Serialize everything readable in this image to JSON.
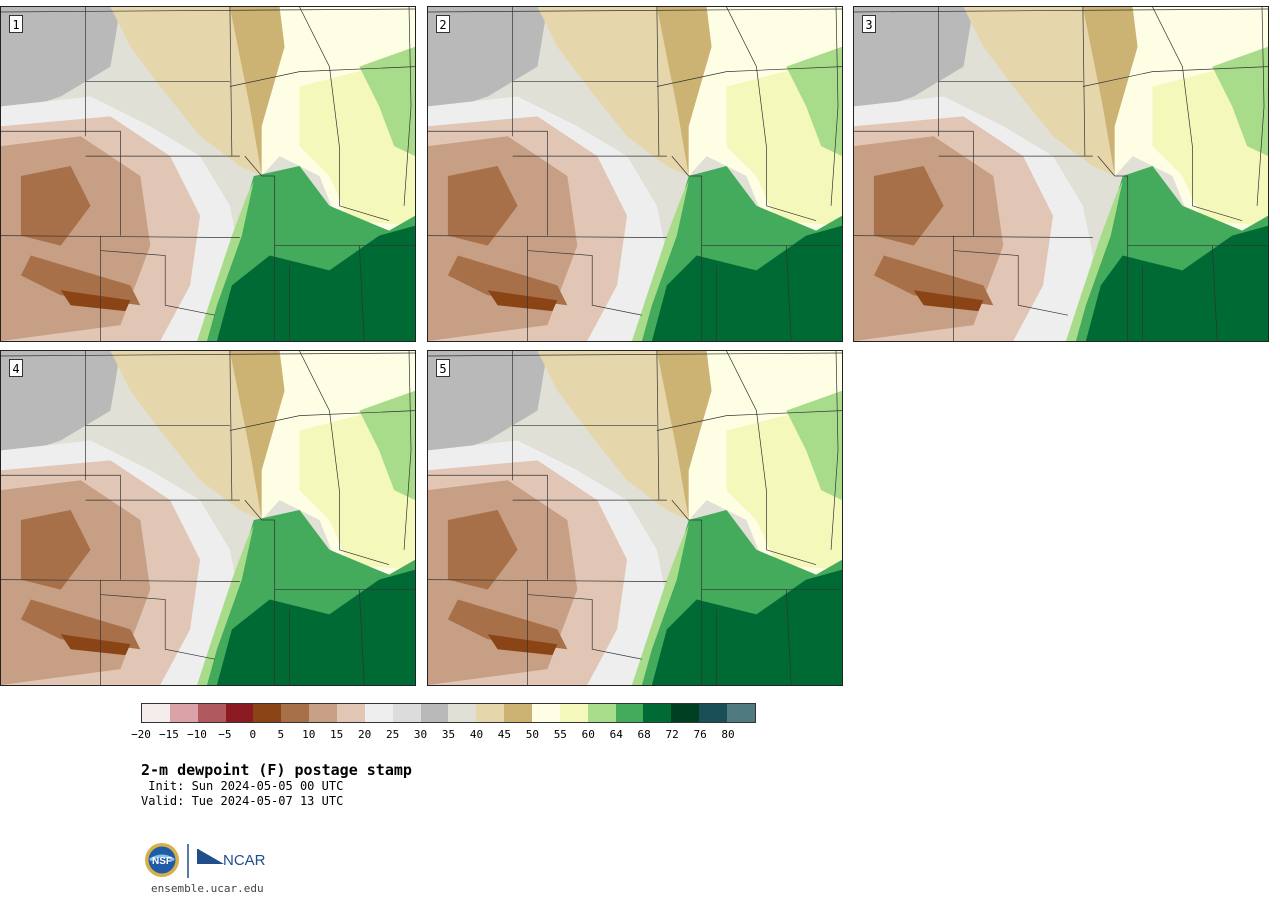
{
  "panels": [
    {
      "label": "1",
      "surface": "moist"
    },
    {
      "label": "2",
      "surface": "moist"
    },
    {
      "label": "3",
      "surface": "moist"
    },
    {
      "label": "4",
      "surface": "moist"
    },
    {
      "label": "5",
      "surface": "moist"
    }
  ],
  "colorbar": {
    "colors": [
      "#f5ecec",
      "#d9a3a8",
      "#b05a60",
      "#8b1a22",
      "#8a4416",
      "#a87048",
      "#c69f85",
      "#e1c6b6",
      "#eeeeee",
      "#dcdcdc",
      "#b9b9b9",
      "#e0e0d6",
      "#e5d6ac",
      "#cdb373",
      "#fefee4",
      "#f5f8bb",
      "#a8dc8a",
      "#44aa5c",
      "#006a34",
      "#013f22",
      "#1a4f56",
      "#4f7b80"
    ],
    "tick_labels": [
      "−20",
      "−15",
      "−10",
      "−5",
      "0",
      "5",
      "10",
      "15",
      "20",
      "25",
      "30",
      "35",
      "40",
      "45",
      "50",
      "55",
      "60",
      "64",
      "68",
      "72",
      "76",
      "80"
    ]
  },
  "title": "2-m dewpoint (F) postage stamp",
  "init": " Init: Sun 2024-05-05 00 UTC",
  "valid": "Valid: Tue 2024-05-07 13 UTC",
  "logos": {
    "nsf": "NSF",
    "ncar": "NCAR"
  },
  "site": "ensemble.ucar.edu"
}
